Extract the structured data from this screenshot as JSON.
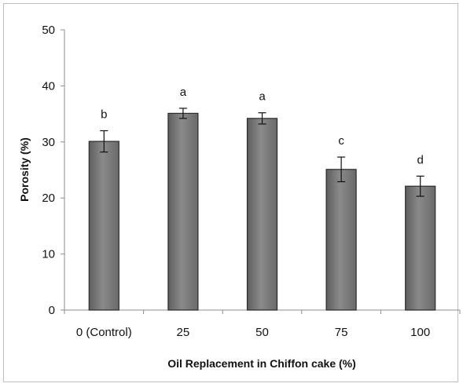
{
  "chart_data": {
    "type": "bar",
    "title": "",
    "xlabel": "Oil Replacement in Chiffon cake (%)",
    "ylabel": "Porosity (%)",
    "ylim": [
      0,
      50
    ],
    "yticks": [
      0,
      10,
      20,
      30,
      40,
      50
    ],
    "categories": [
      "0 (Control)",
      "25",
      "50",
      "75",
      "100"
    ],
    "values": [
      30.1,
      35.1,
      34.2,
      25.1,
      22.1
    ],
    "errors": [
      1.9,
      0.9,
      1.0,
      2.2,
      1.8
    ],
    "significance_letters": [
      "b",
      "a",
      "a",
      "c",
      "d"
    ],
    "bar_color": "#7f7f7f",
    "grid": false,
    "legend": "none"
  }
}
